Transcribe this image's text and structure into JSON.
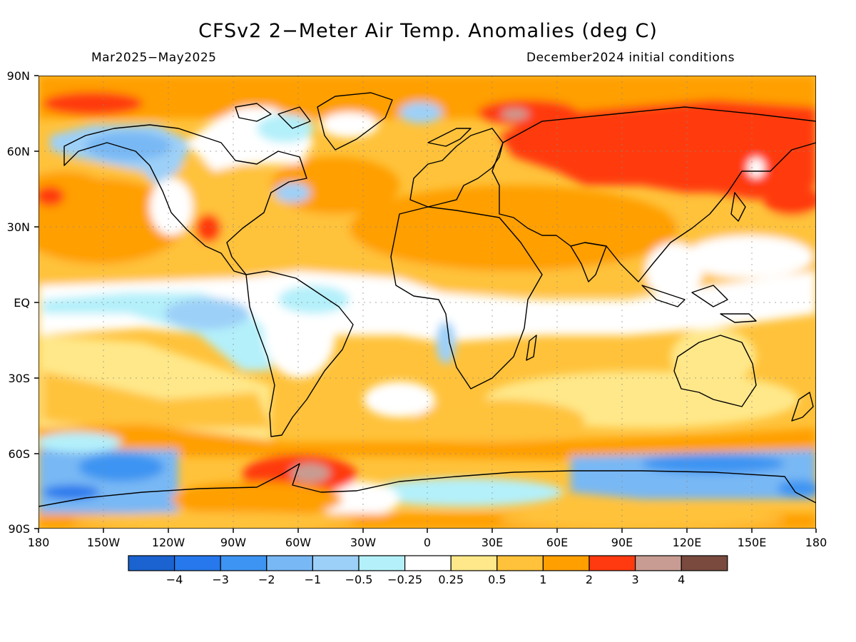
{
  "header": {
    "title": "CFSv2 2−Meter Air Temp. Anomalies (deg C)",
    "period": "Mar2025−May2025",
    "init": "December2024 initial conditions"
  },
  "axes": {
    "lat_labels": [
      "90N",
      "60N",
      "30N",
      "EQ",
      "30S",
      "60S",
      "90S"
    ],
    "lon_labels": [
      "180",
      "150W",
      "120W",
      "90W",
      "60W",
      "30W",
      "0",
      "30E",
      "60E",
      "90E",
      "120E",
      "150E",
      "180"
    ]
  },
  "legend": {
    "colors": [
      "#1a63d0",
      "#2678ec",
      "#3d94f2",
      "#78b8f4",
      "#9dd0f8",
      "#b4f0fa",
      "#ffffff",
      "#ffe88a",
      "#ffc23a",
      "#ff9f00",
      "#ff3a10",
      "#c89c92",
      "#7a4a3e"
    ],
    "labels": [
      "−4",
      "−3",
      "−2",
      "−1",
      "−0.5",
      "−0.25",
      "0.25",
      "0.5",
      "1",
      "2",
      "3",
      "4"
    ]
  }
}
